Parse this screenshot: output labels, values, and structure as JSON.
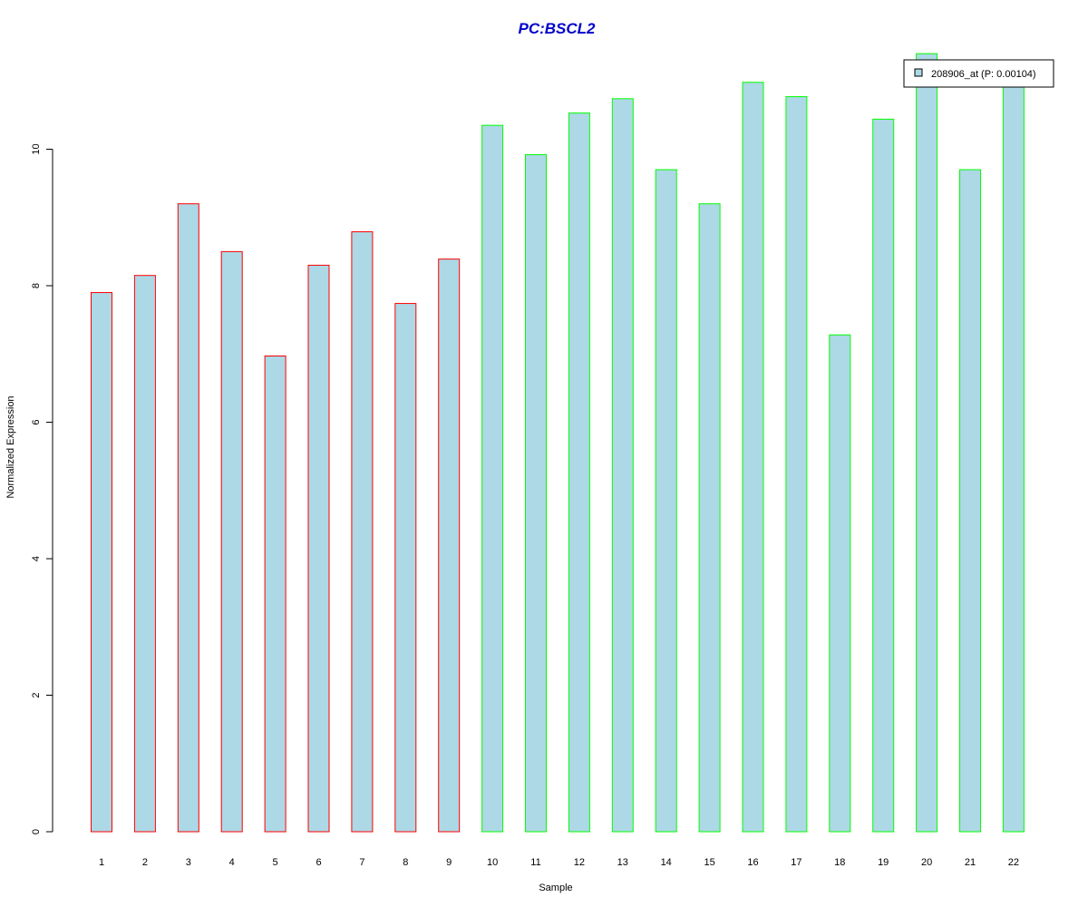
{
  "chart_data": {
    "type": "bar",
    "title": "PC:BSCL2",
    "xlabel": "Sample",
    "ylabel": "Normalized Expression",
    "categories": [
      "1",
      "2",
      "3",
      "4",
      "5",
      "6",
      "7",
      "8",
      "9",
      "10",
      "11",
      "12",
      "13",
      "14",
      "15",
      "16",
      "17",
      "18",
      "19",
      "20",
      "21",
      "22"
    ],
    "values": [
      7.9,
      8.15,
      9.2,
      8.5,
      6.97,
      8.3,
      8.79,
      7.74,
      8.39,
      10.35,
      9.92,
      10.53,
      10.74,
      9.7,
      9.2,
      10.98,
      10.77,
      7.28,
      10.44,
      11.4,
      9.7,
      11.1
    ],
    "groups": [
      "red",
      "red",
      "red",
      "red",
      "red",
      "red",
      "red",
      "red",
      "red",
      "green",
      "green",
      "green",
      "green",
      "green",
      "green",
      "green",
      "green",
      "green",
      "green",
      "green",
      "green",
      "green"
    ],
    "yticks": [
      0,
      2,
      4,
      6,
      8,
      10
    ],
    "ylim": [
      0,
      11.4
    ],
    "grid": false,
    "legend": {
      "position": "top-right",
      "entries": [
        "208906_at (P: 0.00104)"
      ]
    },
    "colors": {
      "bar_fill": "#add8e6",
      "group_red": "#ff0000",
      "group_green": "#00ff00",
      "title": "#0000cc"
    }
  }
}
